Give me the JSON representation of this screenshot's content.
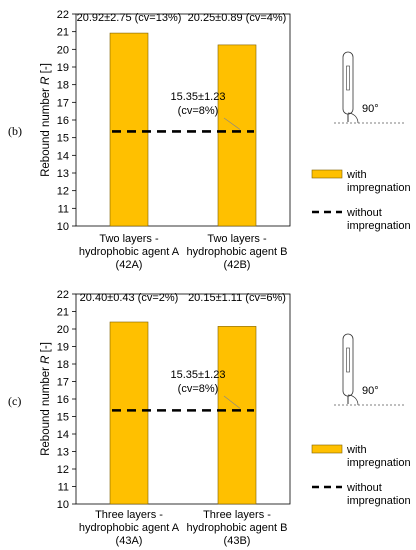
{
  "colors": {
    "bar": "#FFC000",
    "bar_edge": "#7F6000",
    "line": "#000000"
  },
  "panels_order": [
    "b",
    "c"
  ],
  "legend": {
    "bar_label": [
      "with",
      "impregnation"
    ],
    "line_label": [
      "without",
      "impregnation"
    ]
  },
  "inset": {
    "angle_label": "90°"
  },
  "chart_data": [
    {
      "type": "bar",
      "panel_label": "(b)",
      "ylabel_main": "Rebound number ",
      "ylabel_italic": "R",
      "ylabel_unit": " [-]",
      "ylim": [
        10,
        22
      ],
      "yticks": [
        10,
        11,
        12,
        13,
        14,
        15,
        16,
        17,
        18,
        19,
        20,
        21,
        22
      ],
      "grid": false,
      "categories": [
        [
          "Two layers -",
          "hydrophobic agent A",
          "(42A)"
        ],
        [
          "Two layers -",
          "hydrophobic agent B",
          "(42B)"
        ]
      ],
      "series": [
        {
          "name": "with impregnation",
          "values": [
            20.92,
            20.25
          ],
          "labels": [
            "20.92±2.75 (cv=13%)",
            "20.25±0.89 (cv=4%)"
          ]
        },
        {
          "name": "without impregnation",
          "type": "line",
          "value": 15.35,
          "label": [
            "15.35±1.23",
            "(cv=8%)"
          ]
        }
      ]
    },
    {
      "type": "bar",
      "panel_label": "(c)",
      "ylabel_main": "Rebound number ",
      "ylabel_italic": "R",
      "ylabel_unit": " [-]",
      "ylim": [
        10,
        22
      ],
      "yticks": [
        10,
        11,
        12,
        13,
        14,
        15,
        16,
        17,
        18,
        19,
        20,
        21,
        22
      ],
      "grid": false,
      "categories": [
        [
          "Three layers -",
          "hydrophobic agent A",
          "(43A)"
        ],
        [
          "Three layers -",
          "hydrophobic agent B",
          "(43B)"
        ]
      ],
      "series": [
        {
          "name": "with impregnation",
          "values": [
            20.4,
            20.15
          ],
          "labels": [
            "20.40±0.43 (cv=2%)",
            "20.15±1.11 (cv=6%)"
          ]
        },
        {
          "name": "without impregnation",
          "type": "line",
          "value": 15.35,
          "label": [
            "15.35±1.23",
            "(cv=8%)"
          ]
        }
      ]
    }
  ]
}
